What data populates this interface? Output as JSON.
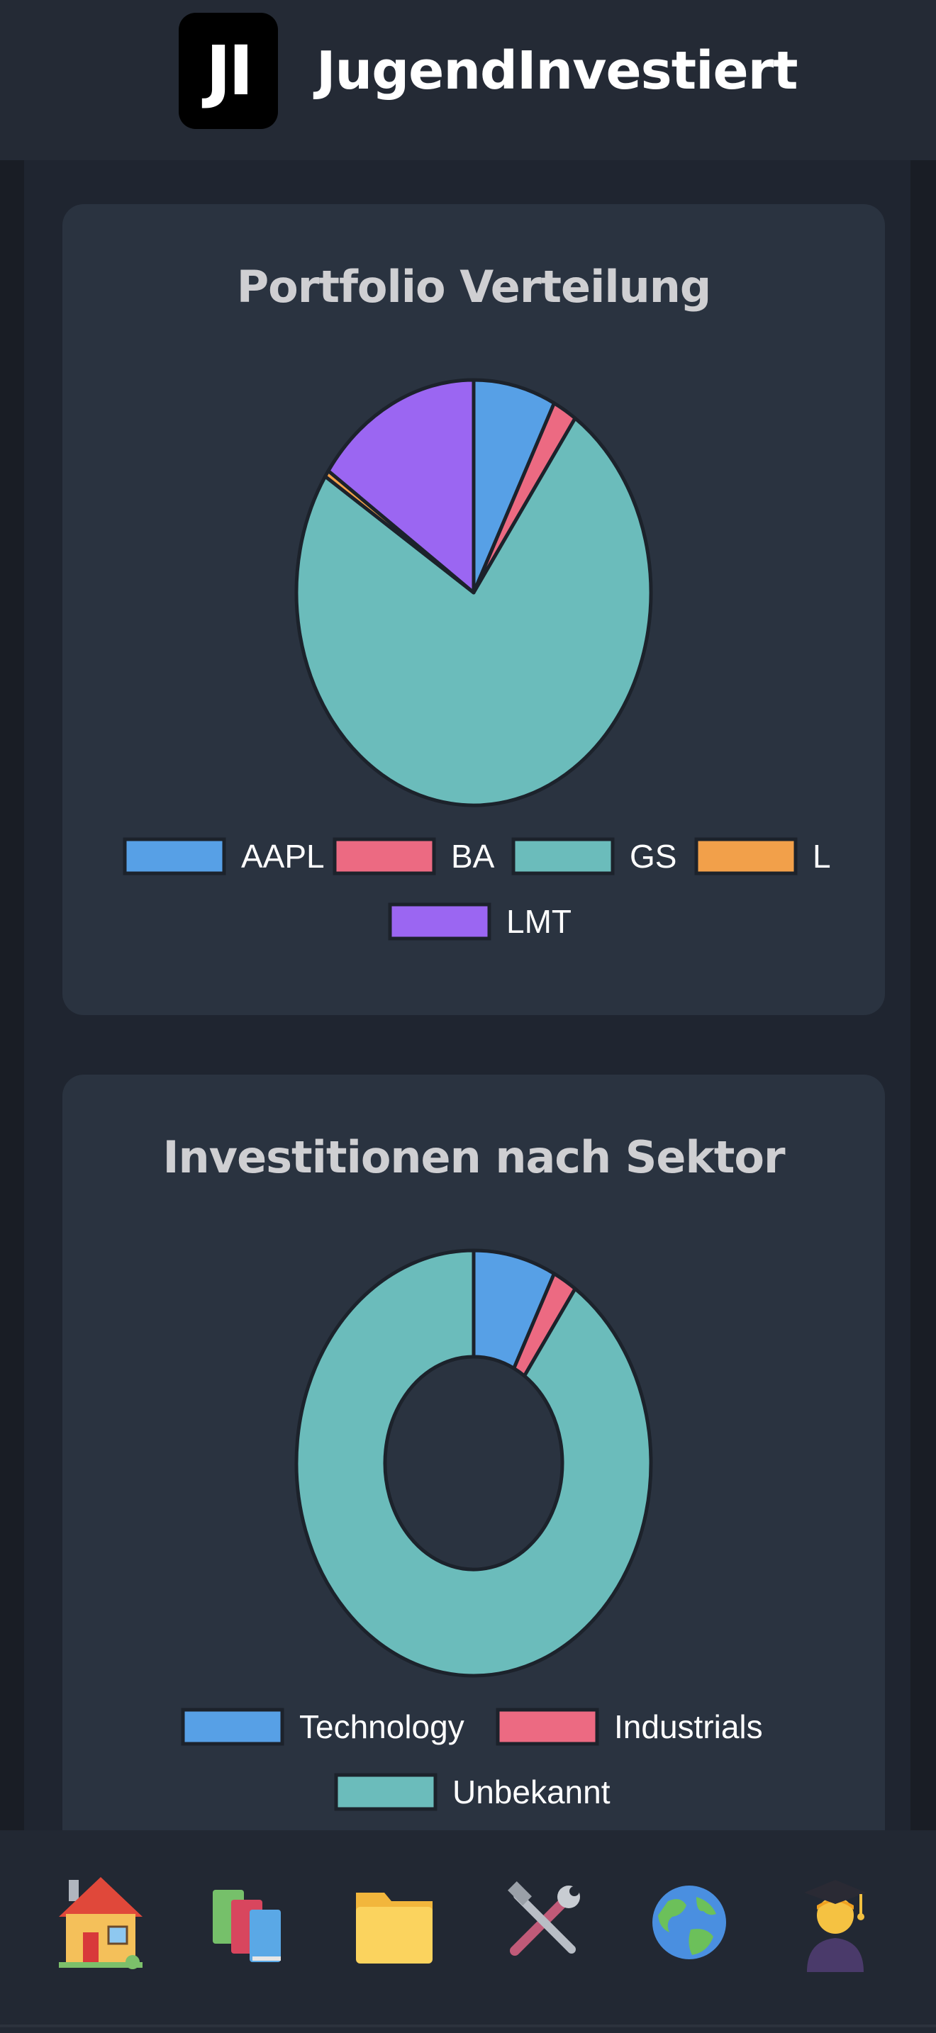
{
  "header": {
    "logo_text": "JI",
    "app_title": "JugendInvestiert"
  },
  "portfolio_card": {
    "title": "Portfolio Verteilung"
  },
  "sector_card": {
    "title": "Investitionen nach Sektor"
  },
  "chart_data": [
    {
      "type": "pie",
      "title": "Portfolio Verteilung",
      "legend_position": "bottom",
      "categories": [
        "AAPL",
        "BA",
        "GS",
        "L",
        "LMT"
      ],
      "values": [
        7.5,
        2.2,
        74.5,
        0.5,
        15.3
      ],
      "colors": [
        "#57a0e6",
        "#ec6a82",
        "#6bbcbb",
        "#f2a04a",
        "#9b66f2"
      ]
    },
    {
      "type": "pie",
      "subtype": "doughnut",
      "title": "Investitionen nach Sektor",
      "legend_position": "bottom",
      "categories": [
        "Technology",
        "Industrials",
        "Unbekannt"
      ],
      "values": [
        7.5,
        2.2,
        90.3
      ],
      "colors": [
        "#57a0e6",
        "#ec6a82",
        "#6bbcbb"
      ]
    }
  ],
  "nav": {
    "items": [
      {
        "icon": "house-icon"
      },
      {
        "icon": "books-icon"
      },
      {
        "icon": "folder-icon"
      },
      {
        "icon": "tools-icon"
      },
      {
        "icon": "globe-icon"
      },
      {
        "icon": "graduate-icon"
      }
    ]
  },
  "colors": {
    "background": "#1e232d",
    "card": "#2a3340",
    "slice_border": "#1c222b"
  }
}
